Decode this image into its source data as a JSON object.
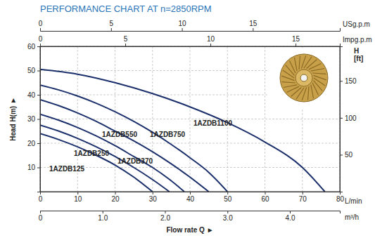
{
  "chart_data": {
    "type": "line",
    "title": "PERFORMANCE CHART AT n=2850RPM",
    "x_label": "Flow rate Q ►",
    "y_label": "Head H(m) ►",
    "x_unit": "L/min",
    "y2_label": "H [ft]",
    "xlim": [
      0,
      80
    ],
    "xticks": [
      0,
      10,
      20,
      30,
      40,
      50,
      60,
      70,
      80
    ],
    "ylim": [
      0,
      60
    ],
    "yticks": [
      10,
      20,
      30,
      40,
      50,
      60
    ],
    "y2lim": [
      0,
      196.85
    ],
    "y2ticks": [
      50,
      100,
      150
    ],
    "top_axes": [
      {
        "label": "USg.p.m",
        "lim": [
          0,
          21.134
        ],
        "ticks": [
          0,
          5,
          10,
          15
        ]
      },
      {
        "label": "Impg.p.m",
        "lim": [
          0,
          17.598
        ],
        "ticks": [
          0,
          5,
          10,
          15
        ]
      }
    ],
    "bottom_axis2": {
      "label": "m³/h",
      "lim": [
        0,
        4.8
      ],
      "ticks": [
        0,
        {
          "value": 1,
          "label": "1.0"
        },
        {
          "value": 2,
          "label": "2.0"
        },
        {
          "value": 3,
          "label": "3.0"
        },
        {
          "value": 4,
          "label": "4.0"
        }
      ]
    },
    "grid": true,
    "series": [
      {
        "name": "1AZDB125",
        "color": "#1b2f6b",
        "x": [
          0,
          5,
          10,
          15,
          20,
          25,
          30
        ],
        "values": [
          24,
          21.5,
          18.5,
          15,
          11,
          6,
          0
        ]
      },
      {
        "name": "1AZDB250",
        "color": "#1b2f6b",
        "x": [
          0,
          5,
          10,
          15,
          20,
          25,
          30,
          34.5
        ],
        "values": [
          27.5,
          25,
          22,
          18.5,
          14.5,
          10,
          5,
          0
        ]
      },
      {
        "name": "1AZDB370",
        "color": "#1b2f6b",
        "x": [
          0,
          5,
          10,
          15,
          20,
          25,
          30,
          35,
          38.5
        ],
        "values": [
          32,
          29.5,
          26.5,
          23,
          19,
          14.5,
          10,
          4.5,
          0
        ]
      },
      {
        "name": "1AZDB550",
        "color": "#1b2f6b",
        "x": [
          0,
          5,
          10,
          15,
          20,
          25,
          30,
          35,
          40,
          45
        ],
        "values": [
          38,
          35.5,
          32.5,
          29,
          25,
          21,
          16.5,
          11.5,
          6,
          0
        ]
      },
      {
        "name": "1AZDB750",
        "color": "#1b2f6b",
        "x": [
          0,
          5,
          10,
          15,
          20,
          25,
          30,
          35,
          40,
          45,
          50
        ],
        "values": [
          44,
          42,
          39.5,
          36.5,
          33,
          29,
          24.5,
          19.5,
          14,
          8,
          0
        ]
      },
      {
        "name": "1AZDB1100",
        "color": "#1b2f6b",
        "x": [
          0,
          10,
          20,
          30,
          40,
          50,
          60,
          70,
          76
        ],
        "values": [
          50.5,
          48.5,
          45,
          40.5,
          35,
          28.5,
          20.5,
          10,
          0
        ]
      }
    ]
  }
}
